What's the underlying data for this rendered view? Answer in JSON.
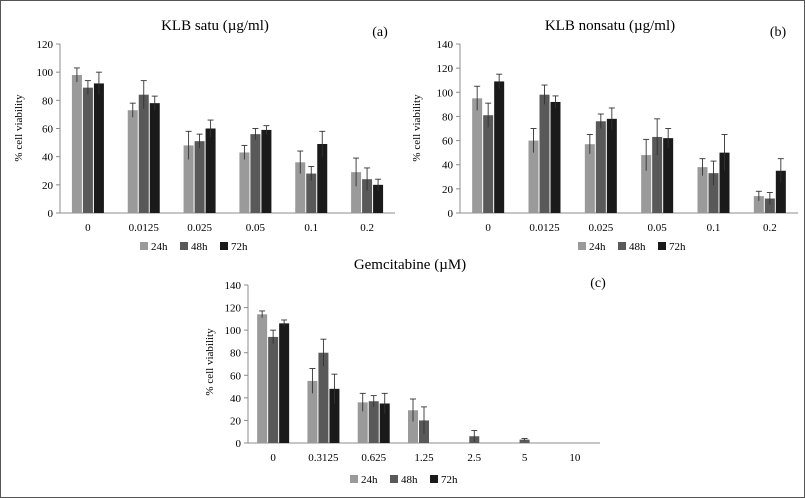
{
  "colors": {
    "24h": "#9a9a9a",
    "48h": "#595959",
    "72h": "#1a1a1a",
    "axis": "#8c8c8c"
  },
  "chart_data": [
    {
      "type": "bar",
      "panel": "(a)",
      "title": "KLB satu (µg/ml)",
      "ylabel": "% cell viability",
      "ylim": [
        0,
        120
      ],
      "yticks": [
        0,
        20,
        40,
        60,
        80,
        100,
        120
      ],
      "categories": [
        "0",
        "0.0125",
        "0.025",
        "0.05",
        "0.1",
        "0.2"
      ],
      "series": [
        {
          "name": "24h",
          "values": [
            98,
            73,
            48,
            43,
            36,
            29
          ],
          "errors": [
            5,
            5,
            10,
            5,
            8,
            10
          ]
        },
        {
          "name": "48h",
          "values": [
            89,
            84,
            51,
            56,
            28,
            24
          ],
          "errors": [
            5,
            10,
            5,
            4,
            5,
            8
          ]
        },
        {
          "name": "72h",
          "values": [
            92,
            78,
            60,
            59,
            49,
            20
          ],
          "errors": [
            8,
            5,
            6,
            3,
            9,
            4
          ]
        }
      ],
      "legend": "bottom"
    },
    {
      "type": "bar",
      "panel": "(b)",
      "title": "KLB nonsatu (µg/ml)",
      "ylabel": "% cell viability",
      "ylim": [
        0,
        140
      ],
      "yticks": [
        0,
        20,
        40,
        60,
        80,
        100,
        120,
        140
      ],
      "categories": [
        "0",
        "0.0125",
        "0.025",
        "0.05",
        "0.1",
        "0.2"
      ],
      "series": [
        {
          "name": "24h",
          "values": [
            95,
            60,
            57,
            48,
            38,
            14
          ],
          "errors": [
            10,
            10,
            8,
            13,
            7,
            4
          ]
        },
        {
          "name": "48h",
          "values": [
            81,
            98,
            76,
            63,
            33,
            12
          ],
          "errors": [
            10,
            8,
            6,
            15,
            10,
            5
          ]
        },
        {
          "name": "72h",
          "values": [
            109,
            92,
            78,
            62,
            50,
            35
          ],
          "errors": [
            6,
            5,
            9,
            8,
            15,
            10
          ]
        }
      ],
      "legend": "bottom"
    },
    {
      "type": "bar",
      "panel": "(c)",
      "title": "Gemcitabine (µM)",
      "ylabel": "% cell viability",
      "ylim": [
        0,
        140
      ],
      "yticks": [
        0,
        20,
        40,
        60,
        80,
        100,
        120,
        140
      ],
      "categories": [
        "0",
        "0.3125",
        "0.625",
        "1.25",
        "2.5",
        "5",
        "10"
      ],
      "series": [
        {
          "name": "24h",
          "values": [
            114,
            55,
            36,
            29,
            0,
            0,
            0
          ],
          "errors": [
            3,
            11,
            8,
            10,
            0,
            0,
            0
          ]
        },
        {
          "name": "48h",
          "values": [
            94,
            80,
            37,
            20,
            6,
            3,
            0
          ],
          "errors": [
            6,
            12,
            5,
            12,
            5,
            1,
            0
          ]
        },
        {
          "name": "72h",
          "values": [
            106,
            48,
            35,
            0,
            0,
            0,
            0
          ],
          "errors": [
            3,
            13,
            9,
            0,
            0,
            0,
            0
          ]
        }
      ],
      "legend": "bottom"
    }
  ]
}
